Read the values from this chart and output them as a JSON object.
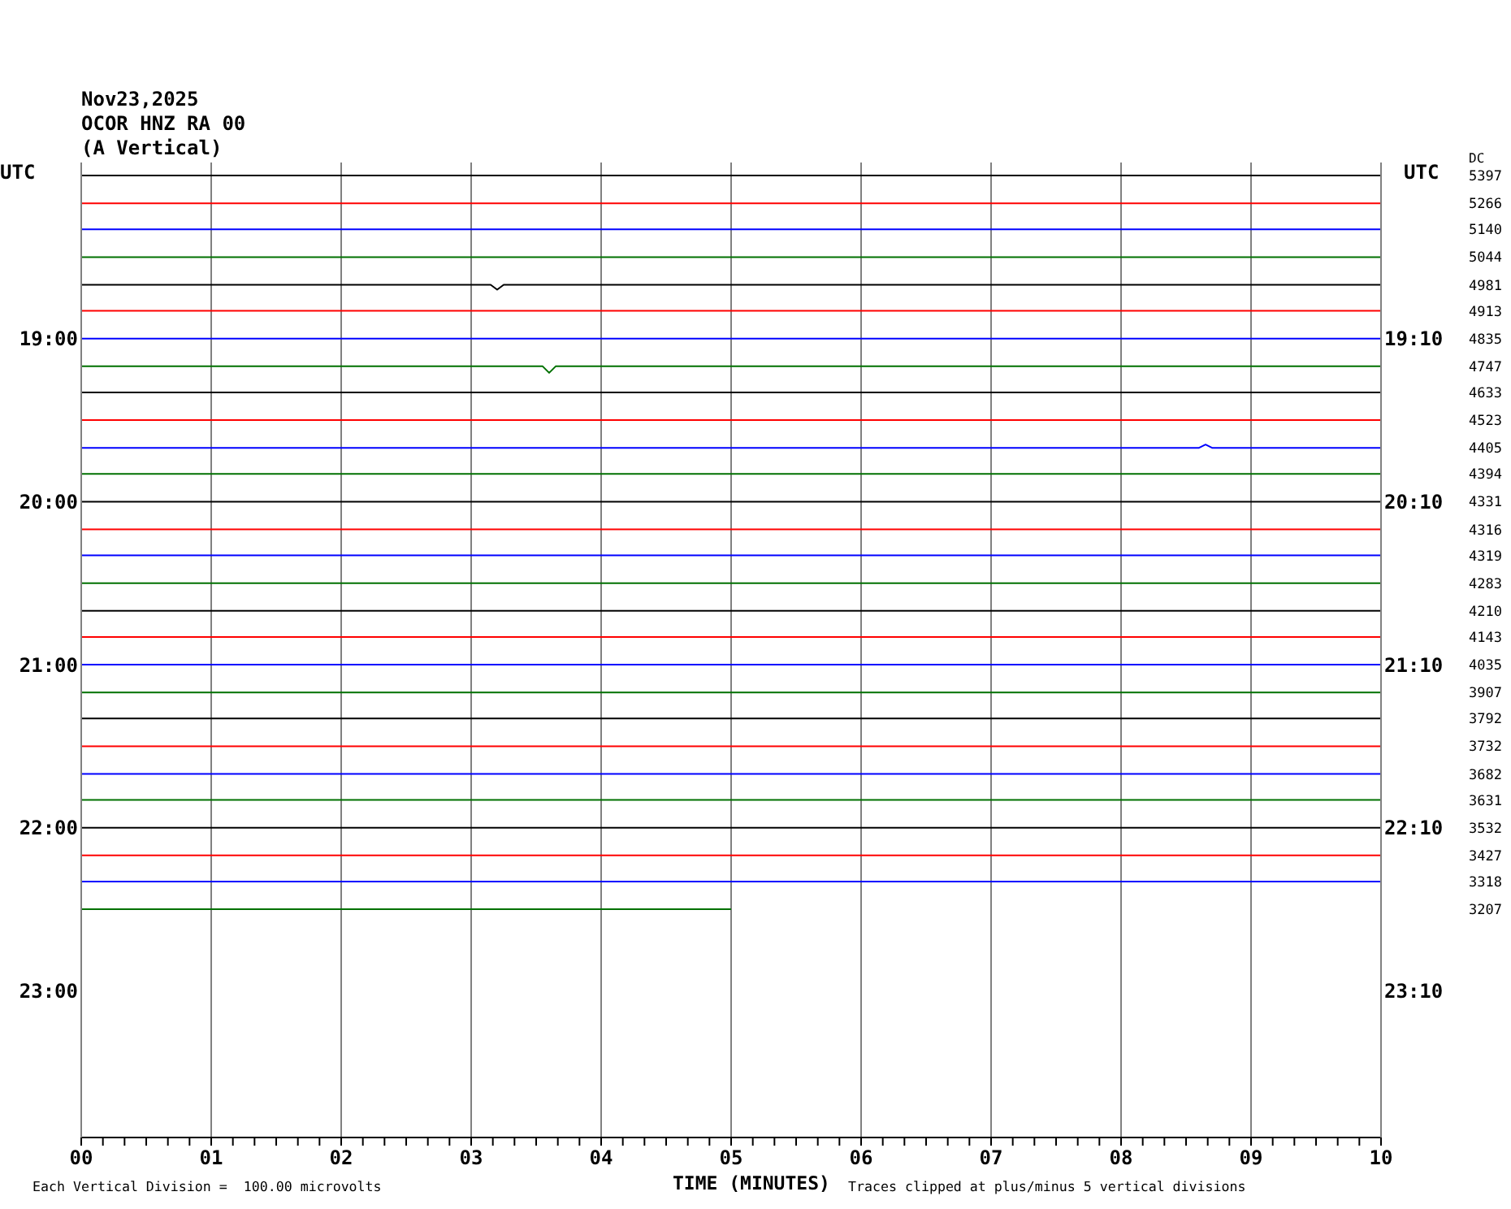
{
  "chart_data": {
    "type": "line",
    "title": "Nov23,2025",
    "subtitle": "OCOR HNZ RA 00",
    "annotations": [
      "(A Vertical)",
      "Each Vertical Division =  100.00 microvolts",
      "Traces clipped at plus/minus 5 vertical divisions"
    ],
    "xlabel": "TIME (MINUTES)",
    "ylabel": "UTC",
    "y2label": "UTC",
    "legend_title": "DC",
    "xlim": [
      0,
      10
    ],
    "xticks": [
      {
        "value": 0,
        "label": "00"
      },
      {
        "value": 0.1667,
        "label": null
      },
      {
        "value": 0.3333,
        "label": null
      },
      {
        "value": 0.5,
        "label": null
      },
      {
        "value": 0.6667,
        "label": null
      },
      {
        "value": 0.8333,
        "label": null
      },
      {
        "value": 1,
        "label": "01"
      },
      {
        "value": 1.1667,
        "label": null
      },
      {
        "value": 1.3333,
        "label": null
      },
      {
        "value": 1.5,
        "label": null
      },
      {
        "value": 1.6667,
        "label": null
      },
      {
        "value": 1.8333,
        "label": null
      },
      {
        "value": 2,
        "label": "02"
      },
      {
        "value": 2.1667,
        "label": null
      },
      {
        "value": 2.3333,
        "label": null
      },
      {
        "value": 2.5,
        "label": null
      },
      {
        "value": 2.6667,
        "label": null
      },
      {
        "value": 2.8333,
        "label": null
      },
      {
        "value": 3,
        "label": "03"
      },
      {
        "value": 3.1667,
        "label": null
      },
      {
        "value": 3.3333,
        "label": null
      },
      {
        "value": 3.5,
        "label": null
      },
      {
        "value": 3.6667,
        "label": null
      },
      {
        "value": 3.8333,
        "label": null
      },
      {
        "value": 4,
        "label": "04"
      },
      {
        "value": 4.1667,
        "label": null
      },
      {
        "value": 4.3333,
        "label": null
      },
      {
        "value": 4.5,
        "label": null
      },
      {
        "value": 4.6667,
        "label": null
      },
      {
        "value": 4.8333,
        "label": null
      },
      {
        "value": 5,
        "label": "05"
      },
      {
        "value": 5.1667,
        "label": null
      },
      {
        "value": 5.3333,
        "label": null
      },
      {
        "value": 5.5,
        "label": null
      },
      {
        "value": 5.6667,
        "label": null
      },
      {
        "value": 5.8333,
        "label": null
      },
      {
        "value": 6,
        "label": "06"
      },
      {
        "value": 6.1667,
        "label": null
      },
      {
        "value": 6.3333,
        "label": null
      },
      {
        "value": 6.5,
        "label": null
      },
      {
        "value": 6.6667,
        "label": null
      },
      {
        "value": 6.8333,
        "label": null
      },
      {
        "value": 7,
        "label": "07"
      },
      {
        "value": 7.1667,
        "label": null
      },
      {
        "value": 7.3333,
        "label": null
      },
      {
        "value": 7.5,
        "label": null
      },
      {
        "value": 7.6667,
        "label": null
      },
      {
        "value": 7.8333,
        "label": null
      },
      {
        "value": 8,
        "label": "08"
      },
      {
        "value": 8.1667,
        "label": null
      },
      {
        "value": 8.3333,
        "label": null
      },
      {
        "value": 8.5,
        "label": null
      },
      {
        "value": 8.6667,
        "label": null
      },
      {
        "value": 8.8333,
        "label": null
      },
      {
        "value": 9,
        "label": "09"
      },
      {
        "value": 9.1667,
        "label": null
      },
      {
        "value": 9.3333,
        "label": null
      },
      {
        "value": 9.5,
        "label": null
      },
      {
        "value": 9.6667,
        "label": null
      },
      {
        "value": 9.8333,
        "label": null
      },
      {
        "value": 10,
        "label": "10"
      }
    ],
    "ylim": [
      23.9,
      17.92
    ],
    "yticks": [
      {
        "value": 19,
        "label": "19:00"
      },
      {
        "value": 20,
        "label": "20:00"
      },
      {
        "value": 21,
        "label": "21:00"
      },
      {
        "value": 22,
        "label": "22:00"
      },
      {
        "value": 23,
        "label": "23:00"
      }
    ],
    "y2lim": [
      24.0667,
      18.0867
    ],
    "y2ticks": [
      {
        "value": 19.1667,
        "label": "19:10"
      },
      {
        "value": 20.1667,
        "label": "20:10"
      },
      {
        "value": 21.1667,
        "label": "21:10"
      },
      {
        "value": 22.1667,
        "label": "22:10"
      },
      {
        "value": 23.1667,
        "label": "23:10"
      }
    ],
    "grid": "x",
    "series": [
      {
        "name": "5397",
        "color": "#000000",
        "x": [
          0,
          10
        ],
        "values": [
          18,
          18
        ]
      },
      {
        "name": "5266",
        "color": "#ff0000",
        "x": [
          0,
          10
        ],
        "values": [
          18.17,
          18.17
        ]
      },
      {
        "name": "5140",
        "color": "#0000ff",
        "x": [
          0,
          10
        ],
        "values": [
          18.33,
          18.33
        ]
      },
      {
        "name": "5044",
        "color": "#007000",
        "x": [
          0,
          10
        ],
        "values": [
          18.5,
          18.5
        ]
      },
      {
        "name": "4981",
        "color": "#000000",
        "x": [
          0,
          3.15,
          3.2,
          3.25,
          10
        ],
        "values": [
          18.67,
          18.67,
          18.7,
          18.67,
          18.67
        ]
      },
      {
        "name": "4913",
        "color": "#ff0000",
        "x": [
          0,
          10
        ],
        "values": [
          18.83,
          18.83
        ]
      },
      {
        "name": "4835",
        "color": "#0000ff",
        "x": [
          0,
          10
        ],
        "values": [
          19,
          19
        ]
      },
      {
        "name": "4747",
        "color": "#007000",
        "x": [
          0,
          3.55,
          3.6,
          3.65,
          10
        ],
        "values": [
          19.17,
          19.17,
          19.21,
          19.17,
          19.17
        ]
      },
      {
        "name": "4633",
        "color": "#000000",
        "x": [
          0,
          10
        ],
        "values": [
          19.33,
          19.33
        ]
      },
      {
        "name": "4523",
        "color": "#ff0000",
        "x": [
          0,
          10
        ],
        "values": [
          19.5,
          19.5
        ]
      },
      {
        "name": "4405",
        "color": "#0000ff",
        "x": [
          0,
          8.6,
          8.65,
          8.7,
          10
        ],
        "values": [
          19.67,
          19.67,
          19.65,
          19.67,
          19.67
        ]
      },
      {
        "name": "4394",
        "color": "#007000",
        "x": [
          0,
          10
        ],
        "values": [
          19.83,
          19.83
        ]
      },
      {
        "name": "4331",
        "color": "#000000",
        "x": [
          0,
          10
        ],
        "values": [
          20,
          20
        ]
      },
      {
        "name": "4316",
        "color": "#ff0000",
        "x": [
          0,
          10
        ],
        "values": [
          20.17,
          20.17
        ]
      },
      {
        "name": "4319",
        "color": "#0000ff",
        "x": [
          0,
          10
        ],
        "values": [
          20.33,
          20.33
        ]
      },
      {
        "name": "4283",
        "color": "#007000",
        "x": [
          0,
          10
        ],
        "values": [
          20.5,
          20.5
        ]
      },
      {
        "name": "4210",
        "color": "#000000",
        "x": [
          0,
          10
        ],
        "values": [
          20.67,
          20.67
        ]
      },
      {
        "name": "4143",
        "color": "#ff0000",
        "x": [
          0,
          10
        ],
        "values": [
          20.83,
          20.83
        ]
      },
      {
        "name": "4035",
        "color": "#0000ff",
        "x": [
          0,
          10
        ],
        "values": [
          21,
          21
        ]
      },
      {
        "name": "3907",
        "color": "#007000",
        "x": [
          0,
          10
        ],
        "values": [
          21.17,
          21.17
        ]
      },
      {
        "name": "3792",
        "color": "#000000",
        "x": [
          0,
          10
        ],
        "values": [
          21.33,
          21.33
        ]
      },
      {
        "name": "3732",
        "color": "#ff0000",
        "x": [
          0,
          10
        ],
        "values": [
          21.5,
          21.5
        ]
      },
      {
        "name": "3682",
        "color": "#0000ff",
        "x": [
          0,
          10
        ],
        "values": [
          21.67,
          21.67
        ]
      },
      {
        "name": "3631",
        "color": "#007000",
        "x": [
          0,
          10
        ],
        "values": [
          21.83,
          21.83
        ]
      },
      {
        "name": "3532",
        "color": "#000000",
        "x": [
          0,
          10
        ],
        "values": [
          22,
          22
        ]
      },
      {
        "name": "3427",
        "color": "#ff0000",
        "x": [
          0,
          10
        ],
        "values": [
          22.17,
          22.17
        ]
      },
      {
        "name": "3318",
        "color": "#0000ff",
        "x": [
          0,
          10
        ],
        "values": [
          22.33,
          22.33
        ]
      },
      {
        "name": "3207",
        "color": "#007000",
        "x": [
          0,
          5
        ],
        "values": [
          22.5,
          22.5
        ]
      }
    ]
  }
}
